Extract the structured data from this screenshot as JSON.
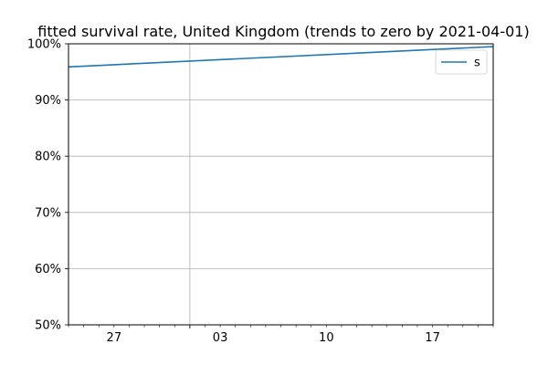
{
  "chart_data": {
    "type": "line",
    "title": "fitted survival rate, United Kingdom (trends to zero by 2021-04-01)",
    "xlabel": "",
    "ylabel": "",
    "x_range": [
      "2020-12-24",
      "2021-01-21"
    ],
    "ylim": [
      0.5,
      1.0
    ],
    "y_ticks": [
      {
        "value": 0.5,
        "label": "50%"
      },
      {
        "value": 0.6,
        "label": "60%"
      },
      {
        "value": 0.7,
        "label": "70%"
      },
      {
        "value": 0.8,
        "label": "80%"
      },
      {
        "value": 0.9,
        "label": "90%"
      },
      {
        "value": 1.0,
        "label": "100%"
      }
    ],
    "x_major_ticks": [
      {
        "date": "2020-12-27",
        "label": "27"
      },
      {
        "date": "2021-01-03",
        "label": "03"
      },
      {
        "date": "2021-01-10",
        "label": "10"
      },
      {
        "date": "2021-01-17",
        "label": "17"
      }
    ],
    "x_minor_tick_step_days": 1,
    "x_major_grid": [
      {
        "date": "2021-01-01"
      }
    ],
    "y_grid": true,
    "legend_position": "top-right",
    "series": [
      {
        "name": "s",
        "color": "#1f77b4",
        "x": [
          "2020-12-24",
          "2021-01-21"
        ],
        "y": [
          0.959,
          0.995
        ]
      }
    ]
  }
}
